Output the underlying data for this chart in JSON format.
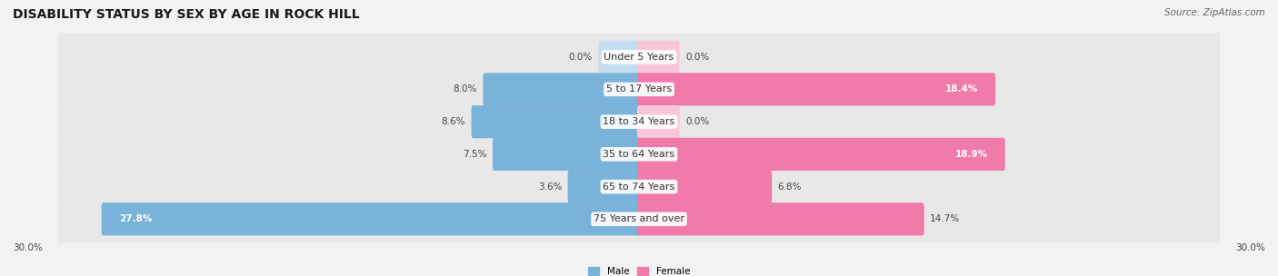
{
  "title": "DISABILITY STATUS BY SEX BY AGE IN ROCK HILL",
  "source": "Source: ZipAtlas.com",
  "categories": [
    "Under 5 Years",
    "5 to 17 Years",
    "18 to 34 Years",
    "35 to 64 Years",
    "65 to 74 Years",
    "75 Years and over"
  ],
  "male_values": [
    0.0,
    8.0,
    8.6,
    7.5,
    3.6,
    27.8
  ],
  "female_values": [
    0.0,
    18.4,
    0.0,
    18.9,
    6.8,
    14.7
  ],
  "male_color": "#7ab3d9",
  "female_color": "#f07aaa",
  "male_color_light": "#c5ddf0",
  "female_color_light": "#f9c5d9",
  "max_value": 30.0,
  "background_color": "#f2f2f2",
  "row_bg_color": "#e8e8e8",
  "title_fontsize": 10,
  "label_fontsize": 8,
  "value_fontsize": 7.5,
  "x_axis_label_left": "30.0%",
  "x_axis_label_right": "30.0%"
}
